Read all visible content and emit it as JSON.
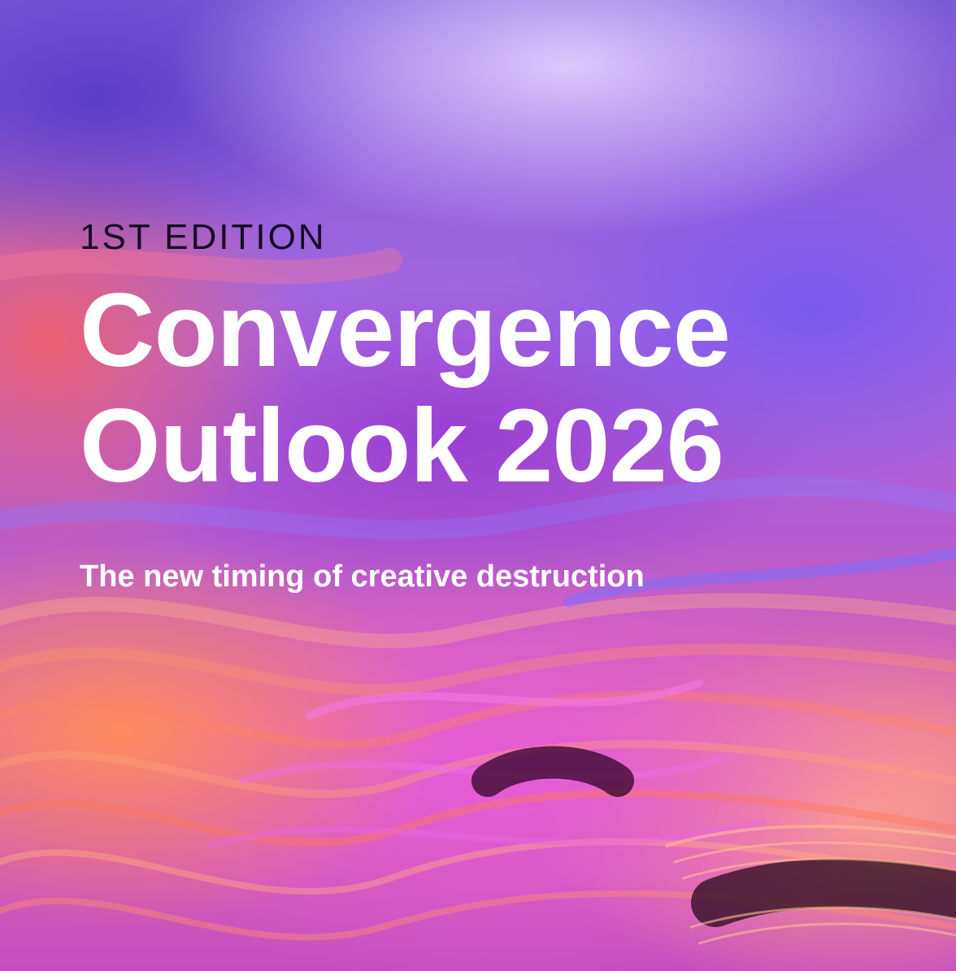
{
  "cover": {
    "edition": "1ST EDITION",
    "title_line_1": "Convergence",
    "title_line_2": "Outlook 2026",
    "subtitle": "The new timing of creative destruction"
  },
  "colors": {
    "title_text": "#ffffff",
    "edition_text": "#140a22",
    "background_purple": "#7a5ad8",
    "background_magenta": "#e26aa8",
    "background_orange": "#ff8c5a"
  }
}
